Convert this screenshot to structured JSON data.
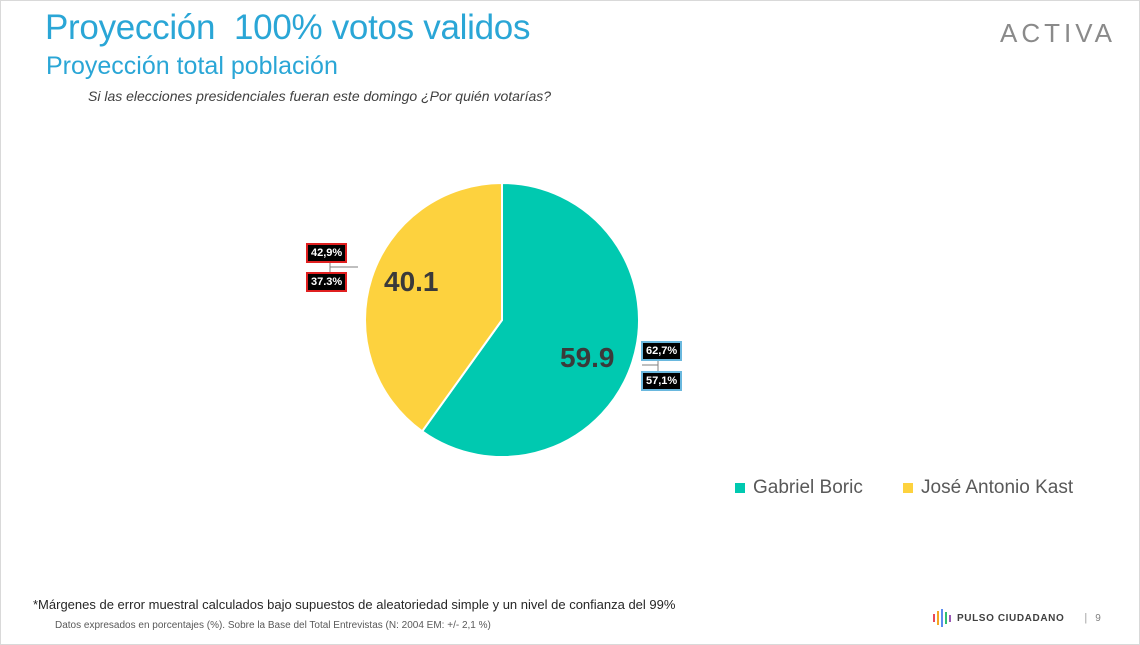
{
  "header": {
    "title": "Proyección  100% votos validos",
    "subtitle": "Proyección total población",
    "question": "Si las elecciones presidenciales fueran este domingo ¿Por quién votarías?",
    "brand": "ACTIVA"
  },
  "chart_data": {
    "type": "pie",
    "title": "",
    "series": [
      {
        "name": "Gabriel Boric",
        "value": 59.9,
        "color": "#00c9b0",
        "label": "59.9",
        "margin_high": "62,7%",
        "margin_low": "57,1%"
      },
      {
        "name": "José Antonio Kast",
        "value": 40.1,
        "color": "#fdd23e",
        "label": "40.1",
        "margin_high": "42,9%",
        "margin_low": "37.3%"
      }
    ],
    "legend_position": "bottom-right"
  },
  "footer": {
    "footnote": "*Márgenes de error muestral calculados bajo supuestos de aleatoriedad simple y un nivel de confianza del 99%",
    "datanote": "Datos expresados en porcentajes (%). Sobre la Base del Total Entrevistas (N: 2004  EM: +/- 2,1 %)",
    "brand": "PULSO CIUDADANO",
    "separator": "|",
    "page_number": "9"
  }
}
